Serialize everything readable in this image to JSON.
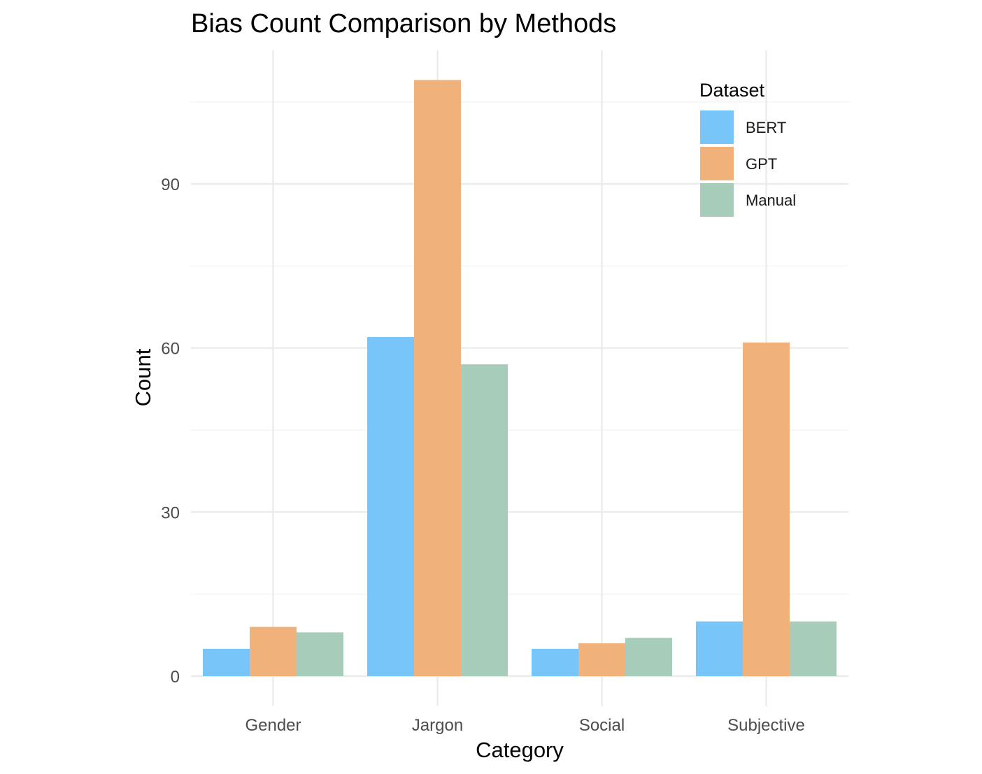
{
  "chart_data": {
    "type": "bar",
    "title": "Bias Count Comparison by Methods",
    "xlabel": "Category",
    "ylabel": "Count",
    "categories": [
      "Gender",
      "Jargon",
      "Social",
      "Subjective"
    ],
    "series": [
      {
        "name": "BERT",
        "values": [
          5,
          62,
          5,
          10
        ],
        "color": "#77c5f9"
      },
      {
        "name": "GPT",
        "values": [
          9,
          109,
          6,
          61
        ],
        "color": "#f0b27a"
      },
      {
        "name": "Manual",
        "values": [
          8,
          57,
          7,
          10
        ],
        "color": "#a8ccba"
      }
    ],
    "ylim": [
      0,
      113
    ],
    "yticks": [
      0,
      30,
      60,
      90
    ],
    "grid": true,
    "legend": {
      "title": "Dataset",
      "position": "top-right"
    }
  }
}
